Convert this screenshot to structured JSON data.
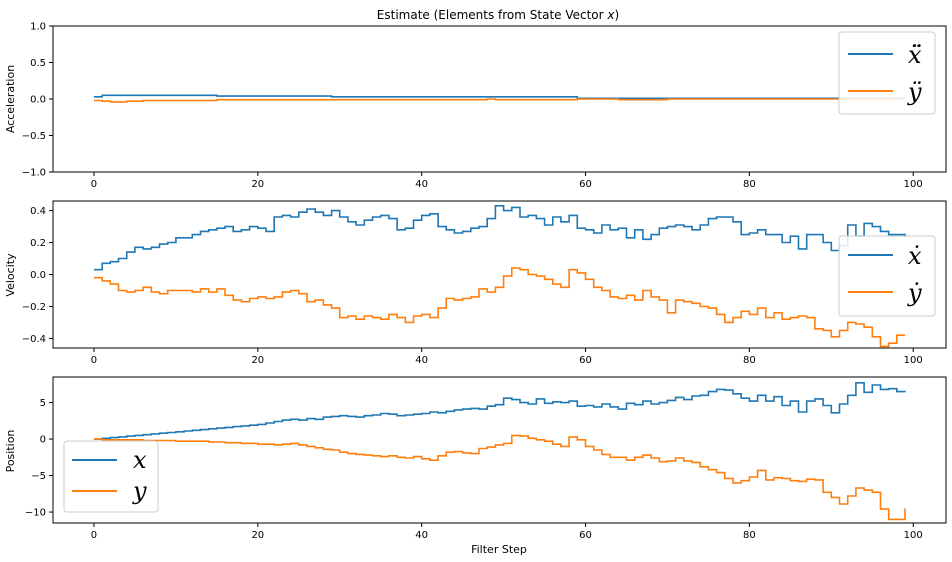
{
  "colors": {
    "series_x": "#1f77b4",
    "series_y": "#ff7f0e"
  },
  "chart_data": [
    {
      "type": "line",
      "step": true,
      "title": "Estimate (Elements from State Vector x)",
      "xlabel": "",
      "ylabel": "Acceleration",
      "xlim": [
        -5,
        104
      ],
      "ylim": [
        -1.0,
        1.0
      ],
      "xticks": [
        0,
        20,
        40,
        60,
        80,
        100
      ],
      "xtick_labels": [
        "0",
        "20",
        "40",
        "60",
        "80",
        "100"
      ],
      "yticks": [
        -1.0,
        -0.5,
        0.0,
        0.5,
        1.0
      ],
      "ytick_labels": [
        "−1.0",
        "−0.5",
        "0.0",
        "0.5",
        "1.0"
      ],
      "legend_position": "upper right",
      "series": [
        {
          "name": "ẍ̈",
          "x": [
            0,
            1,
            15,
            29,
            59,
            99
          ],
          "values": [
            0.03,
            0.05,
            0.04,
            0.03,
            0.01,
            0.01
          ]
        },
        {
          "name": "ÿ",
          "x": [
            0,
            1,
            2,
            4,
            6,
            12,
            15,
            29,
            48,
            49,
            59,
            64,
            70,
            99
          ],
          "values": [
            -0.02,
            -0.03,
            -0.04,
            -0.03,
            -0.02,
            -0.02,
            -0.01,
            -0.01,
            0.0,
            -0.01,
            0.0,
            -0.01,
            0.0,
            0.0
          ]
        }
      ]
    },
    {
      "type": "line",
      "step": true,
      "xlabel": "",
      "ylabel": "Velocity",
      "xlim": [
        -5,
        104
      ],
      "ylim": [
        -0.46,
        0.46
      ],
      "xticks": [
        0,
        20,
        40,
        60,
        80,
        100
      ],
      "xtick_labels": [
        "0",
        "20",
        "40",
        "60",
        "80",
        "100"
      ],
      "yticks": [
        -0.4,
        -0.2,
        0.0,
        0.2,
        0.4
      ],
      "ytick_labels": [
        "−0.4",
        "−0.2",
        "0.0",
        "0.2",
        "0.4"
      ],
      "legend_position": "center right",
      "series": [
        {
          "name": "ẋ",
          "x": [
            0,
            1,
            2,
            3,
            4,
            5,
            6,
            7,
            8,
            9,
            10,
            11,
            12,
            13,
            14,
            15,
            16,
            17,
            18,
            19,
            20,
            21,
            22,
            23,
            24,
            25,
            26,
            27,
            28,
            29,
            30,
            31,
            32,
            33,
            34,
            35,
            36,
            37,
            38,
            39,
            40,
            41,
            42,
            43,
            44,
            45,
            46,
            47,
            48,
            49,
            50,
            51,
            52,
            53,
            54,
            55,
            56,
            57,
            58,
            59,
            60,
            61,
            62,
            63,
            64,
            65,
            66,
            67,
            68,
            69,
            70,
            71,
            72,
            73,
            74,
            75,
            76,
            77,
            78,
            79,
            80,
            81,
            82,
            83,
            84,
            85,
            86,
            87,
            88,
            89,
            90,
            91,
            92,
            93,
            94,
            95,
            96,
            97,
            98,
            99
          ],
          "values": [
            0.03,
            0.07,
            0.08,
            0.1,
            0.14,
            0.17,
            0.16,
            0.17,
            0.19,
            0.2,
            0.23,
            0.23,
            0.25,
            0.27,
            0.28,
            0.29,
            0.3,
            0.27,
            0.28,
            0.3,
            0.29,
            0.27,
            0.36,
            0.37,
            0.36,
            0.39,
            0.41,
            0.39,
            0.37,
            0.4,
            0.36,
            0.33,
            0.31,
            0.34,
            0.36,
            0.37,
            0.35,
            0.28,
            0.29,
            0.34,
            0.37,
            0.38,
            0.3,
            0.28,
            0.26,
            0.27,
            0.29,
            0.3,
            0.35,
            0.43,
            0.4,
            0.42,
            0.36,
            0.37,
            0.35,
            0.31,
            0.36,
            0.33,
            0.37,
            0.29,
            0.28,
            0.26,
            0.31,
            0.28,
            0.29,
            0.23,
            0.28,
            0.22,
            0.25,
            0.29,
            0.3,
            0.31,
            0.3,
            0.28,
            0.31,
            0.35,
            0.36,
            0.36,
            0.33,
            0.25,
            0.26,
            0.28,
            0.25,
            0.25,
            0.2,
            0.24,
            0.16,
            0.25,
            0.25,
            0.2,
            0.15,
            0.18,
            0.31,
            0.24,
            0.32,
            0.3,
            0.27,
            0.25,
            0.25,
            0.23
          ]
        },
        {
          "name": "ẏ",
          "x": [
            0,
            1,
            2,
            3,
            4,
            5,
            6,
            7,
            8,
            9,
            10,
            11,
            12,
            13,
            14,
            15,
            16,
            17,
            18,
            19,
            20,
            21,
            22,
            23,
            24,
            25,
            26,
            27,
            28,
            29,
            30,
            31,
            32,
            33,
            34,
            35,
            36,
            37,
            38,
            39,
            40,
            41,
            42,
            43,
            44,
            45,
            46,
            47,
            48,
            49,
            50,
            51,
            52,
            53,
            54,
            55,
            56,
            57,
            58,
            59,
            60,
            61,
            62,
            63,
            64,
            65,
            66,
            67,
            68,
            69,
            70,
            71,
            72,
            73,
            74,
            75,
            76,
            77,
            78,
            79,
            80,
            81,
            82,
            83,
            84,
            85,
            86,
            87,
            88,
            89,
            90,
            91,
            92,
            93,
            94,
            95,
            96,
            97,
            98,
            99
          ],
          "values": [
            -0.02,
            -0.04,
            -0.06,
            -0.1,
            -0.11,
            -0.1,
            -0.08,
            -0.11,
            -0.12,
            -0.1,
            -0.1,
            -0.1,
            -0.11,
            -0.09,
            -0.11,
            -0.09,
            -0.13,
            -0.16,
            -0.17,
            -0.15,
            -0.14,
            -0.15,
            -0.14,
            -0.11,
            -0.1,
            -0.12,
            -0.17,
            -0.16,
            -0.19,
            -0.21,
            -0.27,
            -0.26,
            -0.28,
            -0.26,
            -0.27,
            -0.28,
            -0.25,
            -0.27,
            -0.3,
            -0.26,
            -0.25,
            -0.27,
            -0.21,
            -0.15,
            -0.16,
            -0.15,
            -0.14,
            -0.09,
            -0.11,
            -0.08,
            -0.01,
            0.04,
            0.03,
            0.0,
            -0.01,
            -0.03,
            -0.06,
            -0.08,
            0.03,
            0.01,
            -0.03,
            -0.08,
            -0.1,
            -0.14,
            -0.15,
            -0.13,
            -0.16,
            -0.1,
            -0.14,
            -0.16,
            -0.24,
            -0.16,
            -0.17,
            -0.18,
            -0.2,
            -0.21,
            -0.25,
            -0.3,
            -0.27,
            -0.23,
            -0.25,
            -0.21,
            -0.27,
            -0.24,
            -0.28,
            -0.27,
            -0.26,
            -0.27,
            -0.34,
            -0.35,
            -0.39,
            -0.35,
            -0.3,
            -0.31,
            -0.33,
            -0.39,
            -0.45,
            -0.43,
            -0.38,
            -0.38
          ]
        }
      ]
    },
    {
      "type": "line",
      "step": true,
      "xlabel": "Filter Step",
      "ylabel": "Position",
      "xlim": [
        -5,
        104
      ],
      "ylim": [
        -11.5,
        8.5
      ],
      "xticks": [
        0,
        20,
        40,
        60,
        80,
        100
      ],
      "xtick_labels": [
        "0",
        "20",
        "40",
        "60",
        "80",
        "100"
      ],
      "yticks": [
        -10,
        -5,
        0,
        5
      ],
      "ytick_labels": [
        "−10",
        "−5",
        "0",
        "5"
      ],
      "legend_position": "lower left",
      "series": [
        {
          "name": "x",
          "x": [
            0,
            1,
            2,
            3,
            4,
            5,
            6,
            7,
            8,
            9,
            10,
            11,
            12,
            13,
            14,
            15,
            16,
            17,
            18,
            19,
            20,
            21,
            22,
            23,
            24,
            25,
            26,
            27,
            28,
            29,
            30,
            31,
            32,
            33,
            34,
            35,
            36,
            37,
            38,
            39,
            40,
            41,
            42,
            43,
            44,
            45,
            46,
            47,
            48,
            49,
            50,
            51,
            52,
            53,
            54,
            55,
            56,
            57,
            58,
            59,
            60,
            61,
            62,
            63,
            64,
            65,
            66,
            67,
            68,
            69,
            70,
            71,
            72,
            73,
            74,
            75,
            76,
            77,
            78,
            79,
            80,
            81,
            82,
            83,
            84,
            85,
            86,
            87,
            88,
            89,
            90,
            91,
            92,
            93,
            94,
            95,
            96,
            97,
            98,
            99
          ],
          "values": [
            0.0,
            0.1,
            0.2,
            0.3,
            0.4,
            0.5,
            0.6,
            0.7,
            0.8,
            0.9,
            1.0,
            1.1,
            1.2,
            1.3,
            1.4,
            1.5,
            1.6,
            1.7,
            1.8,
            1.9,
            2.0,
            2.2,
            2.4,
            2.6,
            2.7,
            2.6,
            2.8,
            2.7,
            3.0,
            3.1,
            3.2,
            3.1,
            3.0,
            3.2,
            3.3,
            3.5,
            3.4,
            3.2,
            3.3,
            3.4,
            3.5,
            3.7,
            3.6,
            3.8,
            4.0,
            4.1,
            4.2,
            4.1,
            4.5,
            4.7,
            5.6,
            5.4,
            5.0,
            4.8,
            5.5,
            4.9,
            5.1,
            5.0,
            5.2,
            4.5,
            4.6,
            4.4,
            4.8,
            4.4,
            4.1,
            4.9,
            4.7,
            5.2,
            4.8,
            5.0,
            5.3,
            5.7,
            5.4,
            5.9,
            6.0,
            6.5,
            6.8,
            6.7,
            6.2,
            5.6,
            5.2,
            6.0,
            5.2,
            5.8,
            4.6,
            5.2,
            3.7,
            5.2,
            5.5,
            4.6,
            3.6,
            4.8,
            6.0,
            7.7,
            6.4,
            7.4,
            6.8,
            6.9,
            6.5,
            6.4
          ]
        },
        {
          "name": "y",
          "x": [
            0,
            1,
            2,
            3,
            4,
            5,
            6,
            7,
            8,
            9,
            10,
            11,
            12,
            13,
            14,
            15,
            16,
            17,
            18,
            19,
            20,
            21,
            22,
            23,
            24,
            25,
            26,
            27,
            28,
            29,
            30,
            31,
            32,
            33,
            34,
            35,
            36,
            37,
            38,
            39,
            40,
            41,
            42,
            43,
            44,
            45,
            46,
            47,
            48,
            49,
            50,
            51,
            52,
            53,
            54,
            55,
            56,
            57,
            58,
            59,
            60,
            61,
            62,
            63,
            64,
            65,
            66,
            67,
            68,
            69,
            70,
            71,
            72,
            73,
            74,
            75,
            76,
            77,
            78,
            79,
            80,
            81,
            82,
            83,
            84,
            85,
            86,
            87,
            88,
            89,
            90,
            91,
            92,
            93,
            94,
            95,
            96,
            97,
            98,
            99
          ],
          "values": [
            0.0,
            -0.1,
            -0.1,
            -0.1,
            -0.1,
            -0.1,
            -0.2,
            -0.2,
            -0.2,
            -0.2,
            -0.3,
            -0.3,
            -0.3,
            -0.3,
            -0.4,
            -0.4,
            -0.5,
            -0.5,
            -0.6,
            -0.6,
            -0.7,
            -0.7,
            -0.8,
            -0.7,
            -0.6,
            -0.8,
            -1.0,
            -1.2,
            -1.4,
            -1.5,
            -1.8,
            -2.0,
            -2.1,
            -2.2,
            -2.3,
            -2.4,
            -2.3,
            -2.5,
            -2.6,
            -2.4,
            -2.7,
            -2.9,
            -2.3,
            -1.8,
            -1.7,
            -1.9,
            -2.0,
            -1.3,
            -1.1,
            -0.8,
            -0.6,
            0.5,
            0.4,
            0.1,
            -0.1,
            -0.3,
            -0.7,
            -1.0,
            0.3,
            -0.1,
            -1.0,
            -1.5,
            -2.1,
            -2.5,
            -2.5,
            -2.9,
            -2.5,
            -2.2,
            -2.6,
            -3.1,
            -3.0,
            -2.6,
            -3.0,
            -3.2,
            -3.8,
            -4.2,
            -4.6,
            -5.4,
            -6.0,
            -5.7,
            -5.2,
            -4.3,
            -5.6,
            -5.3,
            -5.4,
            -5.7,
            -5.8,
            -5.5,
            -5.6,
            -7.3,
            -8.0,
            -8.9,
            -7.8,
            -6.7,
            -7.0,
            -7.3,
            -9.6,
            -11.0,
            -11.0,
            -9.5
          ]
        }
      ]
    }
  ]
}
